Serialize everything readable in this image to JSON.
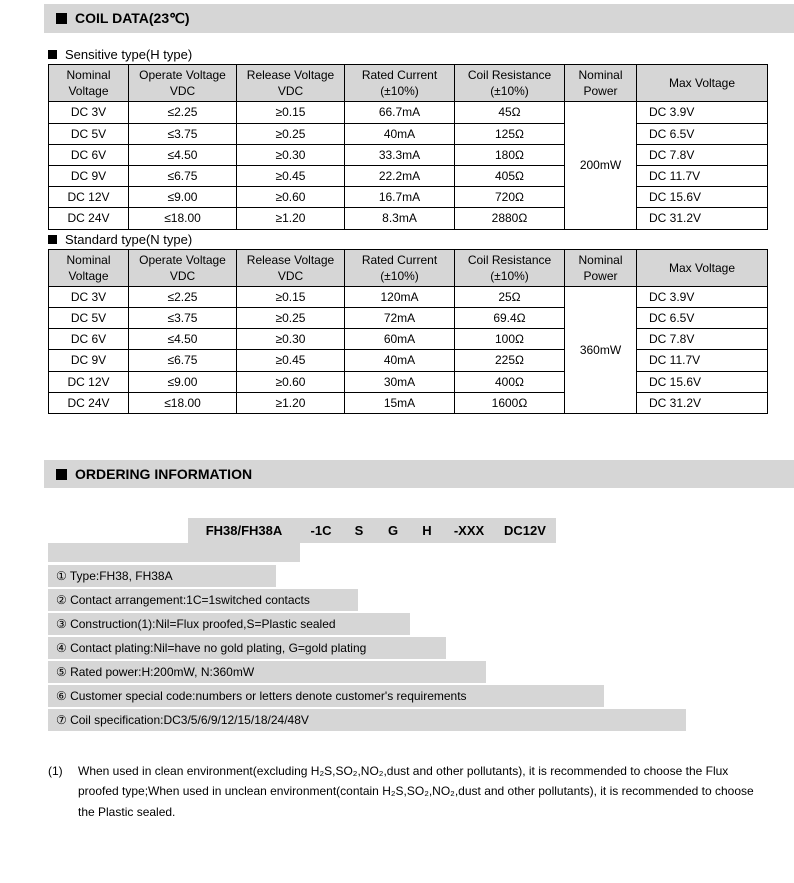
{
  "section1": {
    "title": "COIL DATA(23℃)"
  },
  "table_headers": {
    "nominal_voltage": "Nominal Voltage",
    "operate_voltage": "Operate Voltage VDC",
    "release_voltage": "Release Voltage VDC",
    "rated_current": "Rated Current (±10%)",
    "coil_resistance": "Coil Resistance (±10%)",
    "nominal_power": "Nominal Power",
    "max_voltage": "Max Voltage"
  },
  "sensitive": {
    "label": "Sensitive type(H type)",
    "nominal_power": "200mW",
    "rows": [
      {
        "nv": "DC   3V",
        "ov": "≤2.25",
        "rv": "≥0.15",
        "rc": "66.7mA",
        "cr": "45Ω",
        "mv": "DC     3.9V"
      },
      {
        "nv": "DC   5V",
        "ov": "≤3.75",
        "rv": "≥0.25",
        "rc": "40mA",
        "cr": "125Ω",
        "mv": "DC     6.5V"
      },
      {
        "nv": "DC   6V",
        "ov": "≤4.50",
        "rv": "≥0.30",
        "rc": "33.3mA",
        "cr": "180Ω",
        "mv": "DC     7.8V"
      },
      {
        "nv": "DC   9V",
        "ov": "≤6.75",
        "rv": "≥0.45",
        "rc": "22.2mA",
        "cr": "405Ω",
        "mv": "DC   11.7V"
      },
      {
        "nv": "DC 12V",
        "ov": "≤9.00",
        "rv": "≥0.60",
        "rc": "16.7mA",
        "cr": "720Ω",
        "mv": "DC   15.6V"
      },
      {
        "nv": "DC 24V",
        "ov": "≤18.00",
        "rv": "≥1.20",
        "rc": "8.3mA",
        "cr": "2880Ω",
        "mv": "DC   31.2V"
      }
    ]
  },
  "standard": {
    "label": "Standard type(N type)",
    "nominal_power": "360mW",
    "rows": [
      {
        "nv": "DC   3V",
        "ov": "≤2.25",
        "rv": "≥0.15",
        "rc": "120mA",
        "cr": "25Ω",
        "mv": "DC     3.9V"
      },
      {
        "nv": "DC   5V",
        "ov": "≤3.75",
        "rv": "≥0.25",
        "rc": "72mA",
        "cr": "69.4Ω",
        "mv": "DC     6.5V"
      },
      {
        "nv": "DC   6V",
        "ov": "≤4.50",
        "rv": "≥0.30",
        "rc": "60mA",
        "cr": "100Ω",
        "mv": "DC     7.8V"
      },
      {
        "nv": "DC   9V",
        "ov": "≤6.75",
        "rv": "≥0.45",
        "rc": "40mA",
        "cr": "225Ω",
        "mv": "DC   11.7V"
      },
      {
        "nv": "DC 12V",
        "ov": "≤9.00",
        "rv": "≥0.60",
        "rc": "30mA",
        "cr": "400Ω",
        "mv": "DC   15.6V"
      },
      {
        "nv": "DC 24V",
        "ov": "≤18.00",
        "rv": "≥1.20",
        "rc": "15mA",
        "cr": "1600Ω",
        "mv": "DC   31.2V"
      }
    ]
  },
  "section2": {
    "title": "ORDERING INFORMATION"
  },
  "order_header": [
    "FH38/FH38A",
    "-1C",
    "S",
    "G",
    "H",
    "-XXX",
    "DC12V"
  ],
  "order_desc": [
    "① Type:FH38, FH38A",
    "② Contact arrangement:1C=1switched contacts",
    "③ Construction(1):Nil=Flux proofed,S=Plastic sealed",
    "④ Contact plating:Nil=have no gold plating, G=gold plating",
    "⑤ Rated power:H:200mW, N:360mW",
    "⑥ Customer special code:numbers or letters denote customer's requirements",
    "⑦ Coil specification:DC3/5/6/9/12/15/18/24/48V"
  ],
  "order_widths": [
    228,
    310,
    362,
    398,
    438,
    556,
    638
  ],
  "note": {
    "num": "(1)",
    "text": "When used in clean environment(excluding H₂S,SO₂,NO₂,dust and other pollutants), it is recommended to choose the Flux proofed type;When used in unclean environment(contain H₂S,SO₂,NO₂,dust and other pollutants), it is recommended to choose the Plastic sealed."
  },
  "colors": {
    "header_bg": "#d6d6d6",
    "border": "#000000",
    "text": "#000000",
    "page_bg": "#ffffff"
  }
}
